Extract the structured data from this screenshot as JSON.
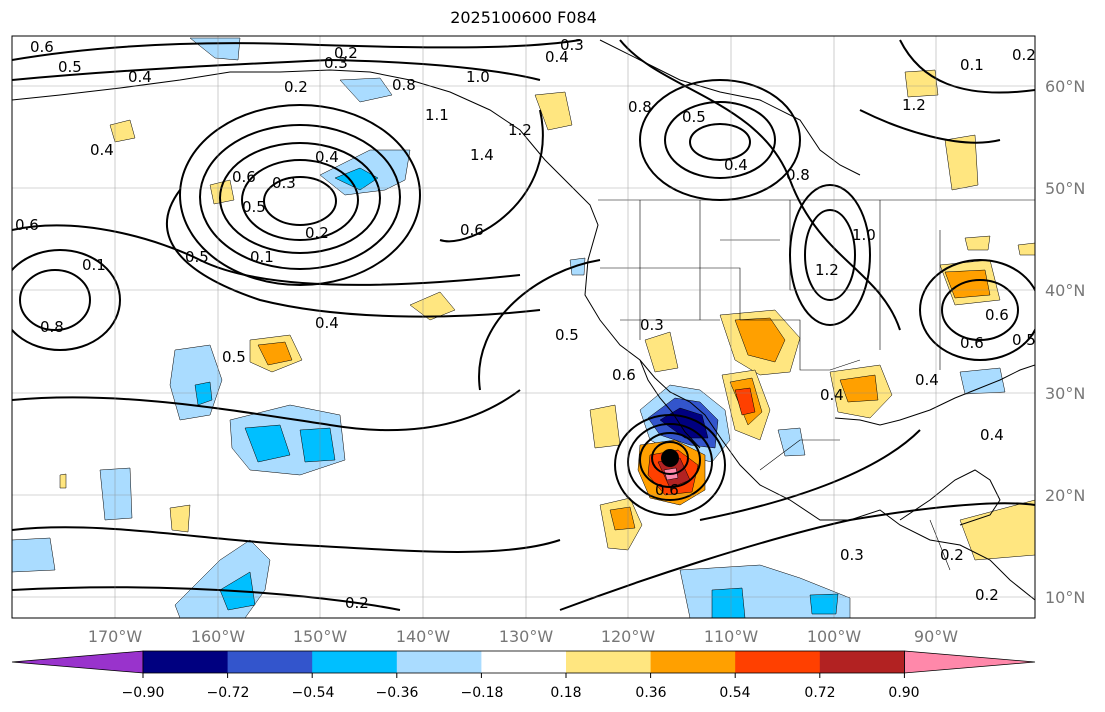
{
  "title": "2025100600 F084",
  "axes": {
    "lat_ticks": [
      "60°N",
      "50°N",
      "40°N",
      "30°N",
      "20°N",
      "10°N"
    ],
    "lon_ticks": [
      "170°W",
      "160°W",
      "150°W",
      "140°W",
      "130°W",
      "120°W",
      "110°W",
      "100°W",
      "90°W"
    ]
  },
  "colorbar": {
    "labels": [
      "−0.90",
      "−0.72",
      "−0.54",
      "−0.36",
      "−0.18",
      "0.18",
      "0.36",
      "0.54",
      "0.72",
      "0.90"
    ],
    "colors": [
      "#9933cc",
      "#000080",
      "#3355cc",
      "#00bfff",
      "#aadcff",
      "#ffffff",
      "#ffe680",
      "#ffa000",
      "#ff4000",
      "#b22222",
      "#ff88aa"
    ]
  },
  "contour_labels": [
    "0.6",
    "0.5",
    "0.4",
    "0.2",
    "0.3",
    "0.3",
    "0.4",
    "0.2",
    "0.8",
    "1.0",
    "1.1",
    "1.4",
    "1.2",
    "0.4",
    "0.6",
    "0.3",
    "0.5",
    "0.4",
    "0.2",
    "0.1",
    "0.6",
    "0.5",
    "0.4",
    "0.6",
    "0.1",
    "0.8",
    "0.5",
    "0.8",
    "0.4",
    "0.8",
    "1.2",
    "1.0",
    "1.2",
    "0.5",
    "0.4",
    "0.5",
    "0.6",
    "0.3",
    "0.6",
    "0.4",
    "0.1",
    "0.6",
    "0.5",
    "0.6",
    "0.4",
    "0.3",
    "0.2",
    "0.2",
    "0.2",
    "0.2"
  ]
}
